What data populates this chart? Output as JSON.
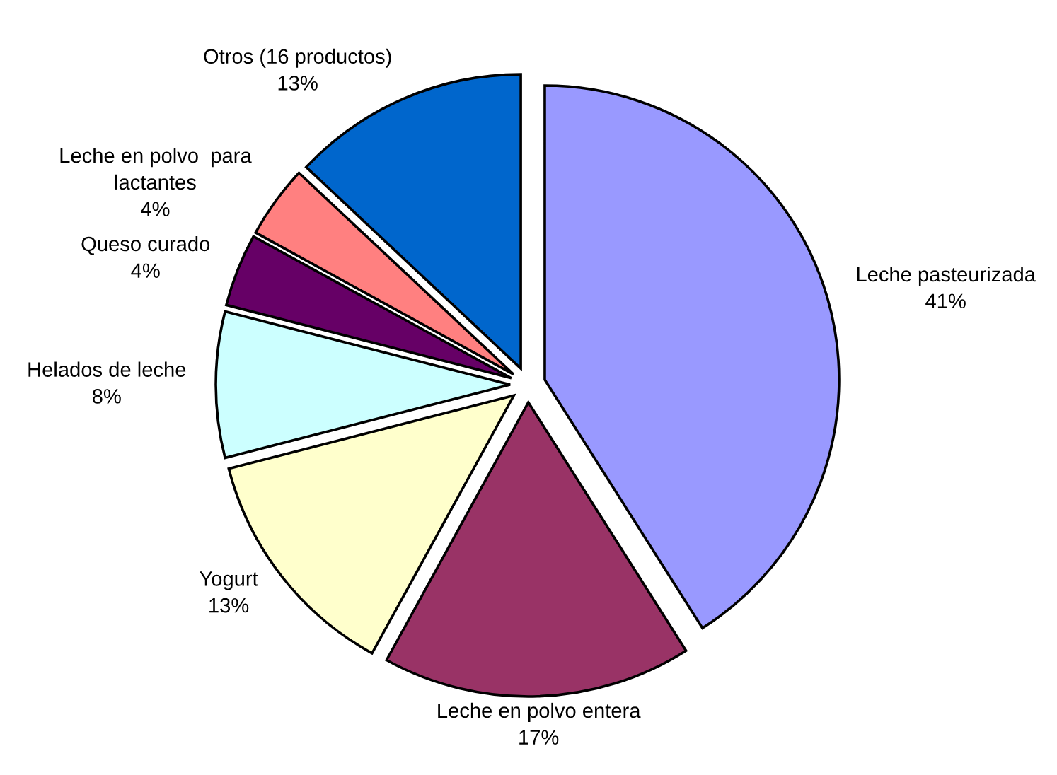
{
  "chart_data": {
    "type": "pie",
    "categories": [
      "Leche pasteurizada",
      "Leche en polvo entera",
      "Yogurt",
      "Helados de leche",
      "Queso curado",
      "Leche en polvo  para\nlactantes",
      "Otros (16 productos)"
    ],
    "values": [
      41,
      17,
      13,
      8,
      4,
      4,
      13
    ],
    "value_labels": [
      "41%",
      "17%",
      "13%",
      "8%",
      "4%",
      "4%",
      "13%"
    ],
    "colors": [
      "#9999ff",
      "#993366",
      "#ffffcc",
      "#ccffff",
      "#660066",
      "#ff8080",
      "#0066cc"
    ]
  }
}
